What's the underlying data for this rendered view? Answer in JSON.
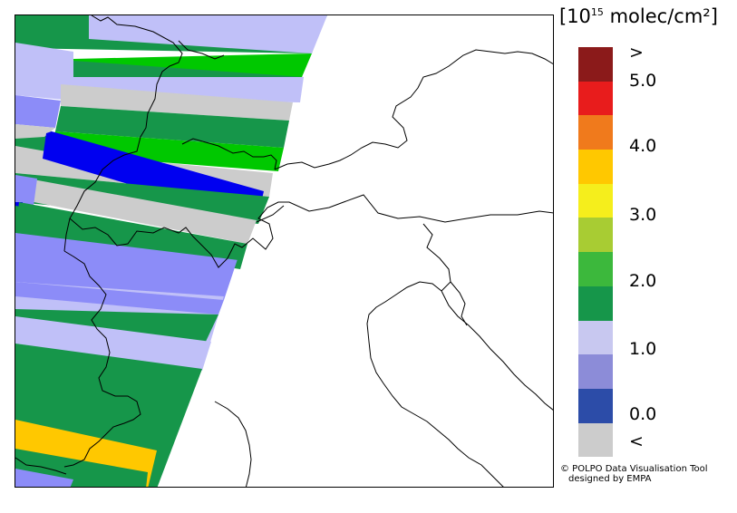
{
  "legend": {
    "unit_prefix": "[10",
    "unit_exponent": "15",
    "unit_suffix": " molec/cm²]",
    "colors": [
      "#8b1a1a",
      "#e81c1c",
      "#f07a1c",
      "#ffc800",
      "#f5ee1c",
      "#a8cc33",
      "#3cb83c",
      "#16964a",
      "#c8c8f0",
      "#8c8cd8",
      "#2c4ca8",
      "#cccccc"
    ],
    "ticks": [
      {
        "label": ">"
      },
      {
        "label": "5.0"
      },
      {
        "label": "4.0"
      },
      {
        "label": "3.0"
      },
      {
        "label": "2.0"
      },
      {
        "label": "1.0"
      },
      {
        "label": "0.0"
      },
      {
        "label": "<"
      }
    ]
  },
  "credit": {
    "line1": "© POLPO Data Visualisation Tool",
    "line2": "designed by EMPA"
  },
  "swath_colors": {
    "green_dark": "#16964a",
    "green_bright": "#00c800",
    "lavender": "#c0c0f8",
    "periwinkle": "#8c8cf8",
    "blue": "#0000f0",
    "grey": "#cccccc",
    "orange": "#ffc800"
  }
}
